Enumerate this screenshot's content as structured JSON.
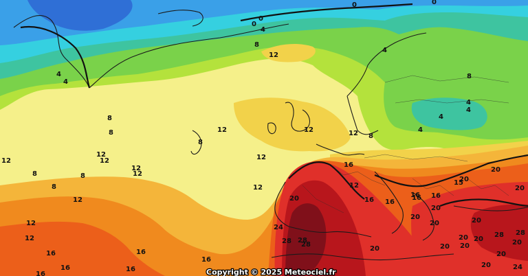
{
  "copyright": "Copyright © 2025 Meteociel.fr",
  "colors": {
    "deep_blue": "#2f6fd6",
    "blue": "#3aa0e8",
    "cyan": "#35d0e0",
    "teal": "#3ec4a0",
    "green": "#7ad24a",
    "light_green": "#b4e23c",
    "yellow_green": "#dbec3a",
    "yellow": "#f5f08a",
    "gold": "#f2d24a",
    "light_orange": "#f4b53a",
    "orange": "#f08a1e",
    "dark_orange": "#ec5f1a",
    "red": "#e0302a",
    "dark_red": "#b8161c",
    "maroon": "#80101a"
  },
  "isotherm_labels": [
    {
      "text": "0"
    },
    {
      "text": "0"
    },
    {
      "text": "0"
    },
    {
      "text": "0"
    },
    {
      "text": "4"
    },
    {
      "text": "8"
    },
    {
      "text": "12"
    },
    {
      "text": "4"
    },
    {
      "text": "4"
    },
    {
      "text": "4"
    },
    {
      "text": "8"
    },
    {
      "text": "4"
    },
    {
      "text": "4"
    },
    {
      "text": "4"
    },
    {
      "text": "4"
    },
    {
      "text": "8"
    },
    {
      "text": "8"
    },
    {
      "text": "12"
    },
    {
      "text": "8"
    },
    {
      "text": "12"
    },
    {
      "text": "12"
    },
    {
      "text": "12"
    },
    {
      "text": "12"
    },
    {
      "text": "12"
    },
    {
      "text": "8"
    },
    {
      "text": "8"
    },
    {
      "text": "12"
    },
    {
      "text": "12"
    },
    {
      "text": "12"
    },
    {
      "text": "8"
    },
    {
      "text": "8"
    },
    {
      "text": "12"
    },
    {
      "text": "12"
    },
    {
      "text": "12"
    },
    {
      "text": "12"
    },
    {
      "text": "16"
    },
    {
      "text": "20"
    },
    {
      "text": "24"
    },
    {
      "text": "28"
    },
    {
      "text": "28"
    },
    {
      "text": "28"
    },
    {
      "text": "20"
    },
    {
      "text": "20"
    },
    {
      "text": "20"
    },
    {
      "text": "15"
    },
    {
      "text": "20"
    },
    {
      "text": "16"
    },
    {
      "text": "16"
    },
    {
      "text": "20"
    },
    {
      "text": "20"
    },
    {
      "text": "20"
    },
    {
      "text": "20"
    },
    {
      "text": "20"
    },
    {
      "text": "20"
    },
    {
      "text": "20"
    },
    {
      "text": "28"
    },
    {
      "text": "28"
    },
    {
      "text": "20"
    },
    {
      "text": "24"
    },
    {
      "text": "16"
    },
    {
      "text": "16"
    },
    {
      "text": "16"
    },
    {
      "text": "16"
    },
    {
      "text": "16"
    },
    {
      "text": "16"
    },
    {
      "text": "16"
    },
    {
      "text": "16"
    },
    {
      "text": "16"
    },
    {
      "text": "12"
    },
    {
      "text": "20"
    },
    {
      "text": "20"
    },
    {
      "text": "20"
    }
  ]
}
